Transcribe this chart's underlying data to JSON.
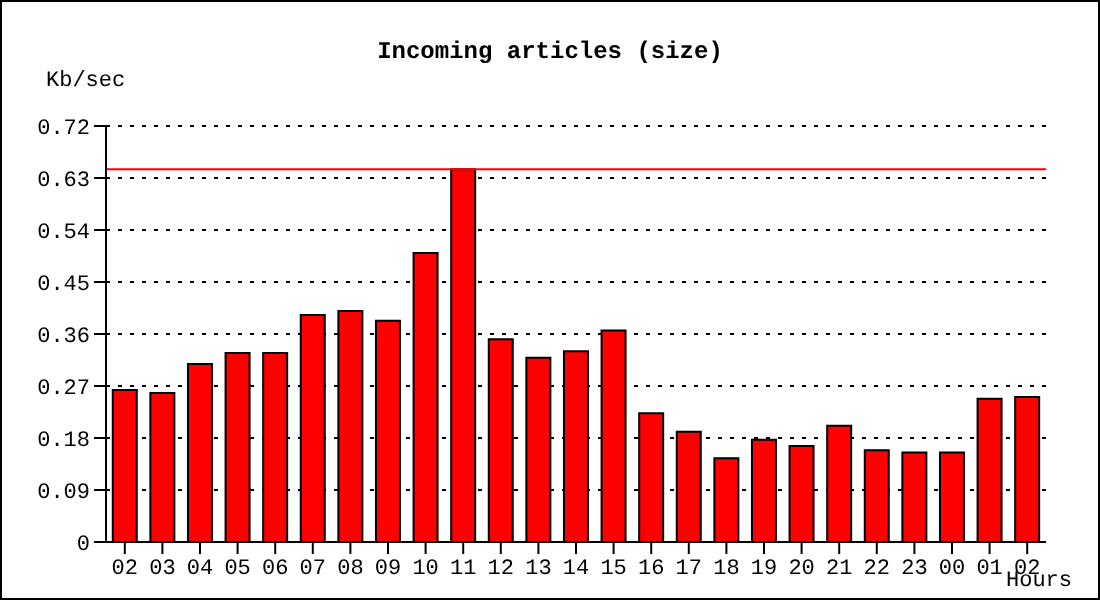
{
  "chart_data": {
    "type": "bar",
    "title": "Incoming articles (size)",
    "xlabel": "Hours",
    "ylabel": "Kb/sec",
    "categories": [
      "02",
      "03",
      "04",
      "05",
      "06",
      "07",
      "08",
      "09",
      "10",
      "11",
      "12",
      "13",
      "14",
      "15",
      "16",
      "17",
      "18",
      "19",
      "20",
      "21",
      "22",
      "23",
      "00",
      "01",
      "02"
    ],
    "series": [
      {
        "color": "#ff0000",
        "values": [
          0.263,
          0.258,
          0.308,
          0.327,
          0.327,
          0.393,
          0.4,
          0.383,
          0.5,
          0.645,
          0.351,
          0.319,
          0.33,
          0.366,
          0.223,
          0.191,
          0.145,
          0.177,
          0.166,
          0.201,
          0.159,
          0.155,
          0.155,
          0.248,
          0.251
        ]
      }
    ],
    "ylim": [
      0,
      0.72
    ],
    "yticks": [
      0,
      0.09,
      0.18,
      0.27,
      0.36,
      0.45,
      0.54,
      0.63,
      0.72
    ],
    "grid": "y",
    "legend": false,
    "ref_lines": [
      {
        "axis": "y",
        "value": 0.645,
        "color": "#ff0000"
      }
    ]
  }
}
